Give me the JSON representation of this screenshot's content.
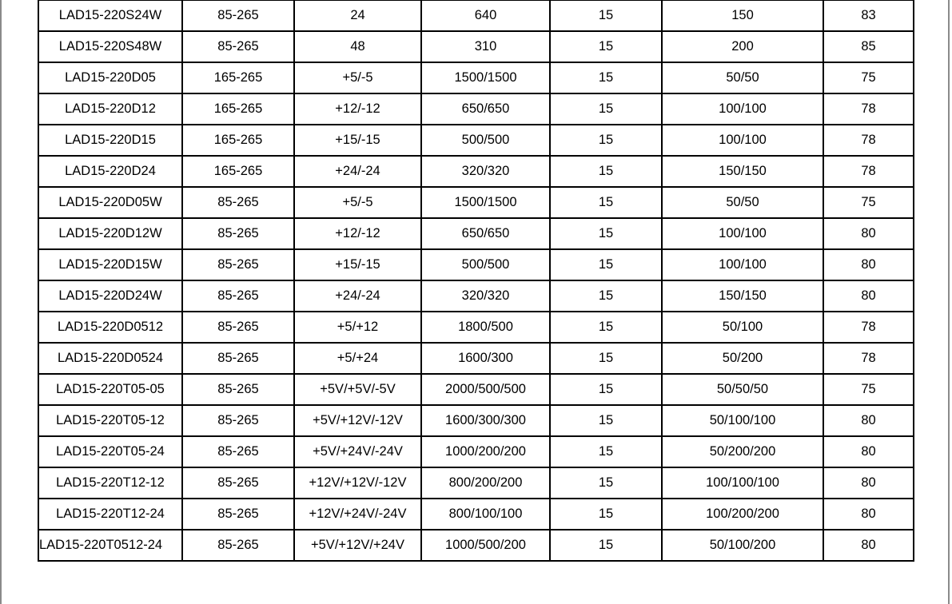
{
  "table": {
    "rows": [
      [
        "LAD15-220S24W",
        "85-265",
        "24",
        "640",
        "15",
        "150",
        "83"
      ],
      [
        "LAD15-220S48W",
        "85-265",
        "48",
        "310",
        "15",
        "200",
        "85"
      ],
      [
        "LAD15-220D05",
        "165-265",
        "+5/-5",
        "1500/1500",
        "15",
        "50/50",
        "75"
      ],
      [
        "LAD15-220D12",
        "165-265",
        "+12/-12",
        "650/650",
        "15",
        "100/100",
        "78"
      ],
      [
        "LAD15-220D15",
        "165-265",
        "+15/-15",
        "500/500",
        "15",
        "100/100",
        "78"
      ],
      [
        "LAD15-220D24",
        "165-265",
        "+24/-24",
        "320/320",
        "15",
        "150/150",
        "78"
      ],
      [
        "LAD15-220D05W",
        "85-265",
        "+5/-5",
        "1500/1500",
        "15",
        "50/50",
        "75"
      ],
      [
        "LAD15-220D12W",
        "85-265",
        "+12/-12",
        "650/650",
        "15",
        "100/100",
        "80"
      ],
      [
        "LAD15-220D15W",
        "85-265",
        "+15/-15",
        "500/500",
        "15",
        "100/100",
        "80"
      ],
      [
        "LAD15-220D24W",
        "85-265",
        "+24/-24",
        "320/320",
        "15",
        "150/150",
        "80"
      ],
      [
        "LAD15-220D0512",
        "85-265",
        "+5/+12",
        "1800/500",
        "15",
        "50/100",
        "78"
      ],
      [
        "LAD15-220D0524",
        "85-265",
        "+5/+24",
        "1600/300",
        "15",
        "50/200",
        "78"
      ],
      [
        "LAD15-220T05-05",
        "85-265",
        "+5V/+5V/-5V",
        "2000/500/500",
        "15",
        "50/50/50",
        "75"
      ],
      [
        "LAD15-220T05-12",
        "85-265",
        "+5V/+12V/-12V",
        "1600/300/300",
        "15",
        "50/100/100",
        "80"
      ],
      [
        "LAD15-220T05-24",
        "85-265",
        "+5V/+24V/-24V",
        "1000/200/200",
        "15",
        "50/200/200",
        "80"
      ],
      [
        "LAD15-220T12-12",
        "85-265",
        "+12V/+12V/-12V",
        "800/200/200",
        "15",
        "100/100/100",
        "80"
      ],
      [
        "LAD15-220T12-24",
        "85-265",
        "+12V/+24V/-24V",
        "800/100/100",
        "15",
        "100/200/200",
        "80"
      ],
      [
        "LAD15-220T0512-24",
        "85-265",
        "+5V/+12V/+24V",
        "1000/500/200",
        "15",
        "50/100/200",
        "80"
      ]
    ]
  }
}
